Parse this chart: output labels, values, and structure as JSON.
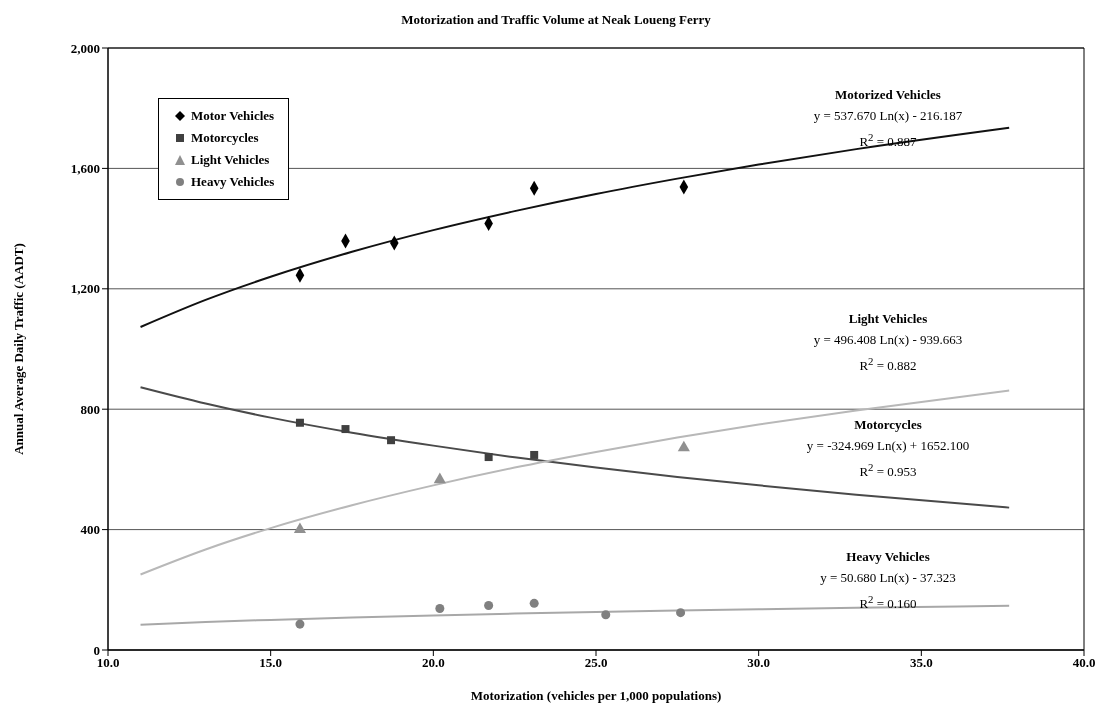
{
  "chart_data": {
    "type": "scatter",
    "title": "Motorization and Traffic Volume at Neak Loueng Ferry",
    "xlabel": "Motorization (vehicles per 1,000 populations)",
    "ylabel": "Annual Average Daily Traffic (AADT)",
    "xlim": [
      10,
      40
    ],
    "xticks": [
      {
        "value": 10,
        "label": "10.0"
      },
      {
        "value": 15,
        "label": "15.0"
      },
      {
        "value": 20,
        "label": "20.0"
      },
      {
        "value": 25,
        "label": "25.0"
      },
      {
        "value": 30,
        "label": "30.0"
      },
      {
        "value": 35,
        "label": "35.0"
      },
      {
        "value": 40,
        "label": "40.0"
      }
    ],
    "ylim": [
      0,
      2000
    ],
    "yticks": [
      0,
      400,
      800,
      {
        "value": 1200,
        "label": "1,200"
      },
      {
        "value": 1600,
        "label": "1,600"
      },
      {
        "value": 2000,
        "label": "2,000"
      }
    ],
    "grid": "y",
    "legend": "top left",
    "series": [
      {
        "name": "Motor Vehicles",
        "marker": "diamond",
        "color": "#000000",
        "x": [
          15.9,
          17.3,
          18.8,
          21.7,
          23.1,
          27.7
        ],
        "values": [
          1245,
          1359,
          1352,
          1417,
          1534,
          1538
        ]
      },
      {
        "name": "Motorcycles",
        "marker": "square",
        "color": "#404040",
        "x": [
          15.9,
          17.3,
          18.7,
          21.7,
          23.1
        ],
        "values": [
          755,
          734,
          697,
          641,
          648
        ]
      },
      {
        "name": "Light Vehicles",
        "marker": "triangle",
        "color": "#909090",
        "x": [
          15.9,
          20.2,
          27.7
        ],
        "values": [
          400,
          566,
          672
        ]
      },
      {
        "name": "Heavy Vehicles",
        "marker": "circle",
        "color": "#808080",
        "x": [
          15.9,
          20.2,
          21.7,
          23.1,
          25.3,
          27.6
        ],
        "values": [
          86,
          138,
          148,
          155,
          117,
          124
        ]
      },
      {
        "type": "line",
        "marker": "none",
        "color": "#111111",
        "x": [
          11,
          13,
          15,
          17.5,
          20,
          22.5,
          25,
          27.5,
          30,
          33,
          37.7
        ],
        "values": [
          1073,
          1163,
          1240,
          1323,
          1395,
          1458,
          1515,
          1566,
          1613,
          1664,
          1735
        ]
      },
      {
        "type": "line",
        "marker": "none",
        "color": "#4a4a4a",
        "x": [
          11,
          13,
          15,
          17.5,
          20,
          22.5,
          25,
          27.5,
          30,
          33,
          37.7
        ],
        "values": [
          873,
          819,
          772,
          722,
          679,
          640,
          606,
          575,
          547,
          516,
          473
        ]
      },
      {
        "type": "line",
        "marker": "none",
        "color": "#b8b8b8",
        "x": [
          11,
          13,
          15,
          17.5,
          20,
          22.5,
          25,
          27.5,
          30,
          33,
          37.7
        ],
        "values": [
          251,
          334,
          405,
          481,
          547,
          606,
          658,
          706,
          749,
          796,
          862
        ]
      },
      {
        "type": "line",
        "marker": "none",
        "color": "#a8a8a8",
        "x": [
          11,
          13,
          15,
          17.5,
          20,
          22.5,
          25,
          27.5,
          30,
          33,
          37.7
        ],
        "values": [
          84,
          93,
          100,
          108,
          115,
          121,
          126,
          131,
          135,
          140,
          147
        ]
      }
    ],
    "annotations": [
      "Motorized Vehicles",
      "y = 537.670 Ln(x) - 216.187",
      "R$^{2}$ = 0.887",
      "Light Vehicles",
      "y = 496.408 Ln(x) - 939.663",
      "R$^{2}$ = 0.882",
      "Motorcycles",
      "y = -324.969 Ln(x) + 1652.100",
      "R$^{2}$ = 0.953",
      "Heavy Vehicles",
      "y = 50.680 Ln(x) - 37.323",
      "R$^{2}$ = 0.160"
    ]
  }
}
